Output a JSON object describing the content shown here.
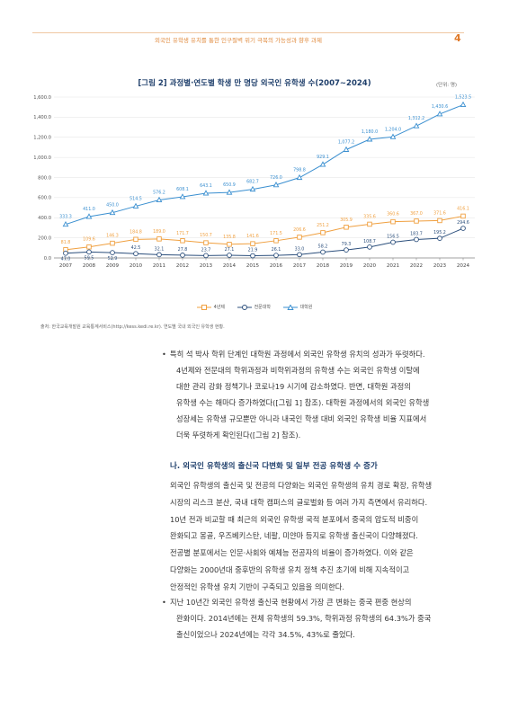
{
  "header": {
    "running_title": "외국인 유학생 유치를 통한 인구절벽 위기 극복의 가능성과 향후 과제",
    "page_number": "4"
  },
  "figure": {
    "title": "[그림 2]  과정별·연도별 학생 만 명당 외국인 유학생 수(2007~2024)",
    "unit": "(단위: 명)",
    "legend": [
      "4년제",
      "전문대학",
      "대학원"
    ],
    "source": "출처: 한국교육개발원 교육통계서비스(http://kess.kedi.re.kr). 연도별 국내 외국인 유학생 현황."
  },
  "chart_data": {
    "type": "line",
    "x": [
      "2007",
      "2008",
      "2009",
      "2010",
      "2011",
      "2012",
      "2013",
      "2014",
      "2015",
      "2016",
      "2017",
      "2018",
      "2019",
      "2020",
      "2021",
      "2022",
      "2023",
      "2024"
    ],
    "ylim": [
      0,
      1600
    ],
    "yticks": [
      "0.0",
      "200.0",
      "400.0",
      "600.0",
      "800.0",
      "1,000.0",
      "1,200.0",
      "1,400.0",
      "1,600.0"
    ],
    "ytick_values": [
      0,
      200,
      400,
      600,
      800,
      1000,
      1200,
      1400,
      1600
    ],
    "grid": true,
    "legend_position": "bottom",
    "series": [
      {
        "name": "4년제",
        "color": "#f0a040",
        "marker": "square",
        "values": [
          81.8,
          109.6,
          146.3,
          184.8,
          189.0,
          171.7,
          150.7,
          135.8,
          141.6,
          171.5,
          206.6,
          251.2,
          305.9,
          335.6,
          360.6,
          367.0,
          371.6,
          416.1
        ],
        "labels": [
          "81.8",
          "109.6",
          "146.3",
          "184.8",
          "189.0",
          "171.7",
          "150.7",
          "135.8",
          "141.6",
          "171.5",
          "206.6",
          "251.2",
          "305.9",
          "335.6",
          "360.6",
          "367.0",
          "371.6",
          "416.1"
        ]
      },
      {
        "name": "전문대학",
        "color": "#2c4f7c",
        "marker": "circle",
        "values": [
          47.0,
          59.5,
          52.9,
          42.5,
          32.1,
          27.8,
          23.7,
          27.1,
          21.9,
          26.1,
          33.0,
          58.2,
          79.3,
          108.7,
          156.5,
          183.7,
          195.2,
          294.6
        ],
        "labels": [
          "47.0",
          "59.5",
          "52.9",
          "42.5",
          "32.1",
          "27.8",
          "23.7",
          "27.1",
          "21.9",
          "26.1",
          "33.0",
          "58.2",
          "79.3",
          "108.7",
          "156.5",
          "183.7",
          "195.2",
          "294.6"
        ]
      },
      {
        "name": "대학원",
        "color": "#3a8fd0",
        "marker": "triangle",
        "values": [
          333.3,
          411.0,
          450.0,
          514.5,
          576.2,
          608.1,
          643.1,
          650.9,
          682.7,
          726.0,
          798.8,
          929.1,
          1077.2,
          1180.0,
          1204.0,
          1312.2,
          1430.6,
          1523.5
        ],
        "labels": [
          "333.3",
          "411.0",
          "450.0",
          "514.5",
          "576.2",
          "608.1",
          "643.1",
          "650.9",
          "682.7",
          "726.0",
          "798.8",
          "929.1",
          "1,077.2",
          "1,180.0",
          "1,204.0",
          "1,312.2",
          "1,430.6",
          "1,523.5"
        ]
      }
    ]
  },
  "bullets_top": {
    "b1": {
      "line1": "특히 석 박사 학위 단계인 대학원 과정에서 외국인 유학생 유치의 성과가 뚜렷하다.",
      "line2": "4년제와 전문대의 학위과정과 비학위과정의 유학생 수는 외국인 유학생 이탈에",
      "line3": "대한 관리 강화 정책기나 코로나19 시기에 감소하였다. 반면, 대학원 과정의",
      "line4": "유학생 수는 해마다 증가하였다([그림 1] 참조). 대학원 과정에서의 외국인 유학생",
      "line5": "성장세는 유학생 규모뿐만 아니라 내국인 학생 대비 외국인 유학생 비율 지표에서",
      "line6": "더욱 뚜렷하게 확인된다([그림 2] 참조)."
    }
  },
  "section": {
    "heading": "나. 외국인 유학생의 출신국 다변화 및 일부 전공 유학생 수 증가",
    "p1": "외국인 유학생의 출신국 및 전공의 다양화는 외국인 유학생의 유치 경로 확장, 유학생",
    "p2": "시장의 리스크 분산, 국내 대학 캠퍼스의 글로벌화 등 여러 가지 측면에서 유리하다.",
    "p3": "10년 전과 비교할 때 최근의 외국인 유학생 국적 분포에서 중국의 압도적 비중이",
    "p4": "완화되고 몽골, 우즈베키스탄, 네팔, 미얀마 등지로 유학생 출신국이 다양해졌다.",
    "p5": "전공별 분포에서는 인문·사회와 예체능 전공자의 비율이 증가하였다. 이와 같은",
    "p6": "다양화는 2000년대 중후반의 유학생 유치 정책 추진 초기에 비해 지속적이고",
    "p7": "안정적인 유학생 유치 기반이 구축되고 있음을 의미한다."
  },
  "bullets_bottom": {
    "b2": {
      "line1": "지난 10년간 외국인 유학생 출신국 현황에서 가장 큰 변화는 중국 편중 현상의",
      "line2": "완화이다. 2014년에는 전체 유학생의 59.3%, 학위과정 유학생의 64.3%가 중국",
      "line3": "출신이었으나 2024년에는 각각 34.5%, 43%로 줄었다."
    }
  },
  "bullet_symbol": "•"
}
